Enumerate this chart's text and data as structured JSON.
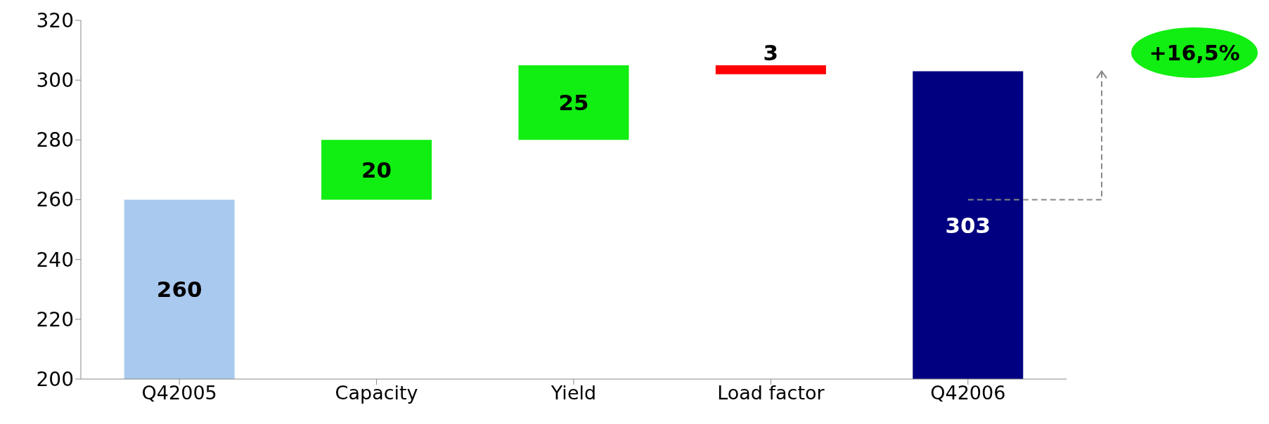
{
  "chart_data": {
    "type": "bar",
    "categories": [
      "Q42005",
      "Capacity",
      "Yield",
      "Load factor",
      "Q42006"
    ],
    "values": [
      260,
      20,
      25,
      -3,
      303
    ],
    "base": [
      null,
      260,
      280,
      305,
      null
    ],
    "colors": [
      "#a9c9ef",
      "#11ee11",
      "#11ee11",
      "#ff0000",
      "#000080"
    ],
    "value_labels": [
      "260",
      "20",
      "25",
      "3",
      "303"
    ],
    "ylim": [
      200,
      320
    ],
    "yticks": [
      200,
      220,
      240,
      260,
      280,
      300,
      320
    ],
    "annotations": [
      "+16,5%"
    ]
  }
}
